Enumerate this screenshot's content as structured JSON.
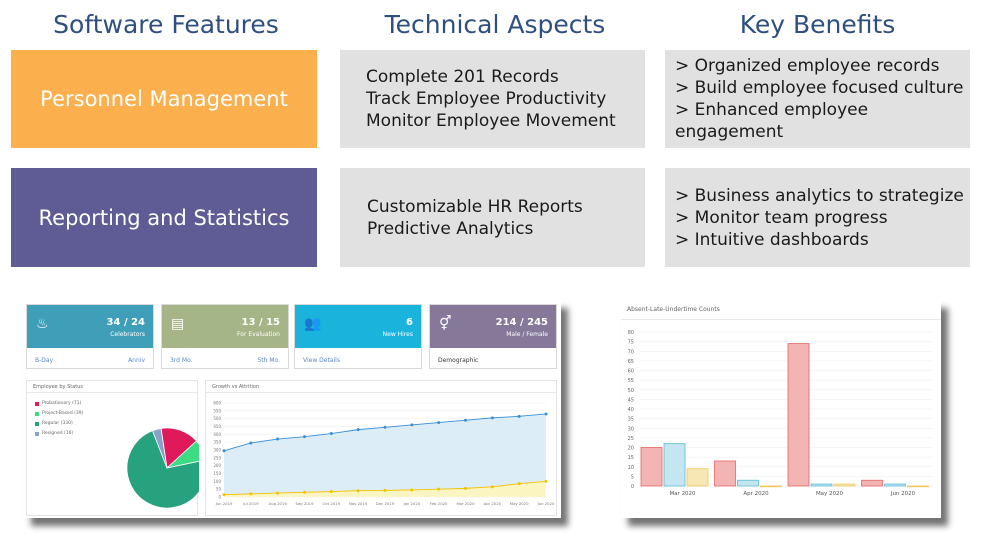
{
  "headings": {
    "features": "Software Features",
    "technical": "Technical Aspects",
    "benefits": "Key Benefits"
  },
  "rows": [
    {
      "feature": "Personnel Management",
      "feature_color": "#fbb04d",
      "technical": [
        "Complete 201 Records",
        "Track Employee Productivity",
        "Monitor Employee Movement"
      ],
      "benefits": [
        "> Organized employee records",
        "> Build employee focused culture",
        "> Enhanced employee engagement"
      ]
    },
    {
      "feature": "Reporting and Statistics",
      "feature_color": "#5f5b94",
      "technical": [
        "Customizable HR Reports",
        "Predictive Analytics"
      ],
      "benefits": [
        "> Business analytics to strategize",
        "> Monitor team progress",
        "> Intuitive dashboards"
      ]
    }
  ],
  "dashboard": {
    "cards": [
      {
        "value": "34 / 24",
        "label": "Celebrators",
        "left": "B-Day",
        "right": "Anniv",
        "color": "#3f9fb8",
        "icon": "cake-icon",
        "glyph": "♨"
      },
      {
        "value": "13 / 15",
        "label": "For Evaluation",
        "left": "3rd Mo.",
        "right": "5th Mo.",
        "color": "#a6b587",
        "icon": "clipboard-icon",
        "glyph": "▤"
      },
      {
        "value": "6",
        "label": "New Hires",
        "left": "View Details",
        "right": "",
        "color": "#1ab3dc",
        "icon": "users-icon",
        "glyph": "👥"
      },
      {
        "value": "214 / 245",
        "label": "Male / Female",
        "left": "Demographic",
        "right": "",
        "color": "#857899",
        "icon": "gender-icon",
        "glyph": "⚥"
      }
    ],
    "status_panel": {
      "title": "Employee by Status",
      "legend": [
        {
          "label": "Probationary (71)",
          "color": "#e0195a",
          "value": 71
        },
        {
          "label": "Project-Based (39)",
          "color": "#3ddc84",
          "value": 39
        },
        {
          "label": "Regular (330)",
          "color": "#26a27e",
          "value": 330
        },
        {
          "label": "Resigned (16)",
          "color": "#8aa0c8",
          "value": 16
        }
      ]
    },
    "growth_panel": {
      "title": "Growth vs Attrition",
      "chart_data": {
        "type": "area",
        "categories": [
          "Jun 2019",
          "Jul 2019",
          "Aug 2019",
          "Sep 2019",
          "Oct 2019",
          "Nov 2019",
          "Dec 2019",
          "Jan 2020",
          "Feb 2020",
          "Mar 2020",
          "Apr 2020",
          "May 2020",
          "Jun 2020"
        ],
        "series": [
          {
            "values": [
              295,
              345,
              370,
              385,
              405,
              430,
              445,
              460,
              475,
              490,
              505,
              515,
              530
            ],
            "color": "#3a8fd9",
            "fill": "#dcedf7"
          },
          {
            "values": [
              15,
              20,
              25,
              30,
              35,
              40,
              42,
              45,
              50,
              55,
              65,
              85,
              100
            ],
            "color": "#f2c200",
            "fill": "#fbf5c2"
          }
        ],
        "yticks": [
          "600",
          "550",
          "500",
          "450",
          "400",
          "350",
          "300",
          "250",
          "200",
          "150",
          "100",
          "50",
          "0"
        ],
        "ylim": [
          0,
          600
        ]
      }
    }
  },
  "barshot": {
    "title": "Absent-Late-Undertime Counts",
    "chart_data": {
      "type": "bar",
      "categories": [
        "Mar 2020",
        "Apr 2020",
        "May 2020",
        "Jun 2020"
      ],
      "series": [
        {
          "values": [
            20,
            13,
            74,
            3
          ],
          "color": "#e66565",
          "fill": "#f3b4b4"
        },
        {
          "values": [
            22,
            3,
            1,
            1
          ],
          "color": "#5bbcd6",
          "fill": "#c4e6f0"
        },
        {
          "values": [
            9,
            0,
            1,
            0
          ],
          "color": "#edc95c",
          "fill": "#f7e7b4"
        }
      ],
      "yticks": [
        "80",
        "75",
        "70",
        "65",
        "60",
        "55",
        "50",
        "45",
        "40",
        "35",
        "30",
        "25",
        "20",
        "15",
        "10",
        "5",
        "0"
      ],
      "ylim": [
        0,
        80
      ]
    }
  }
}
